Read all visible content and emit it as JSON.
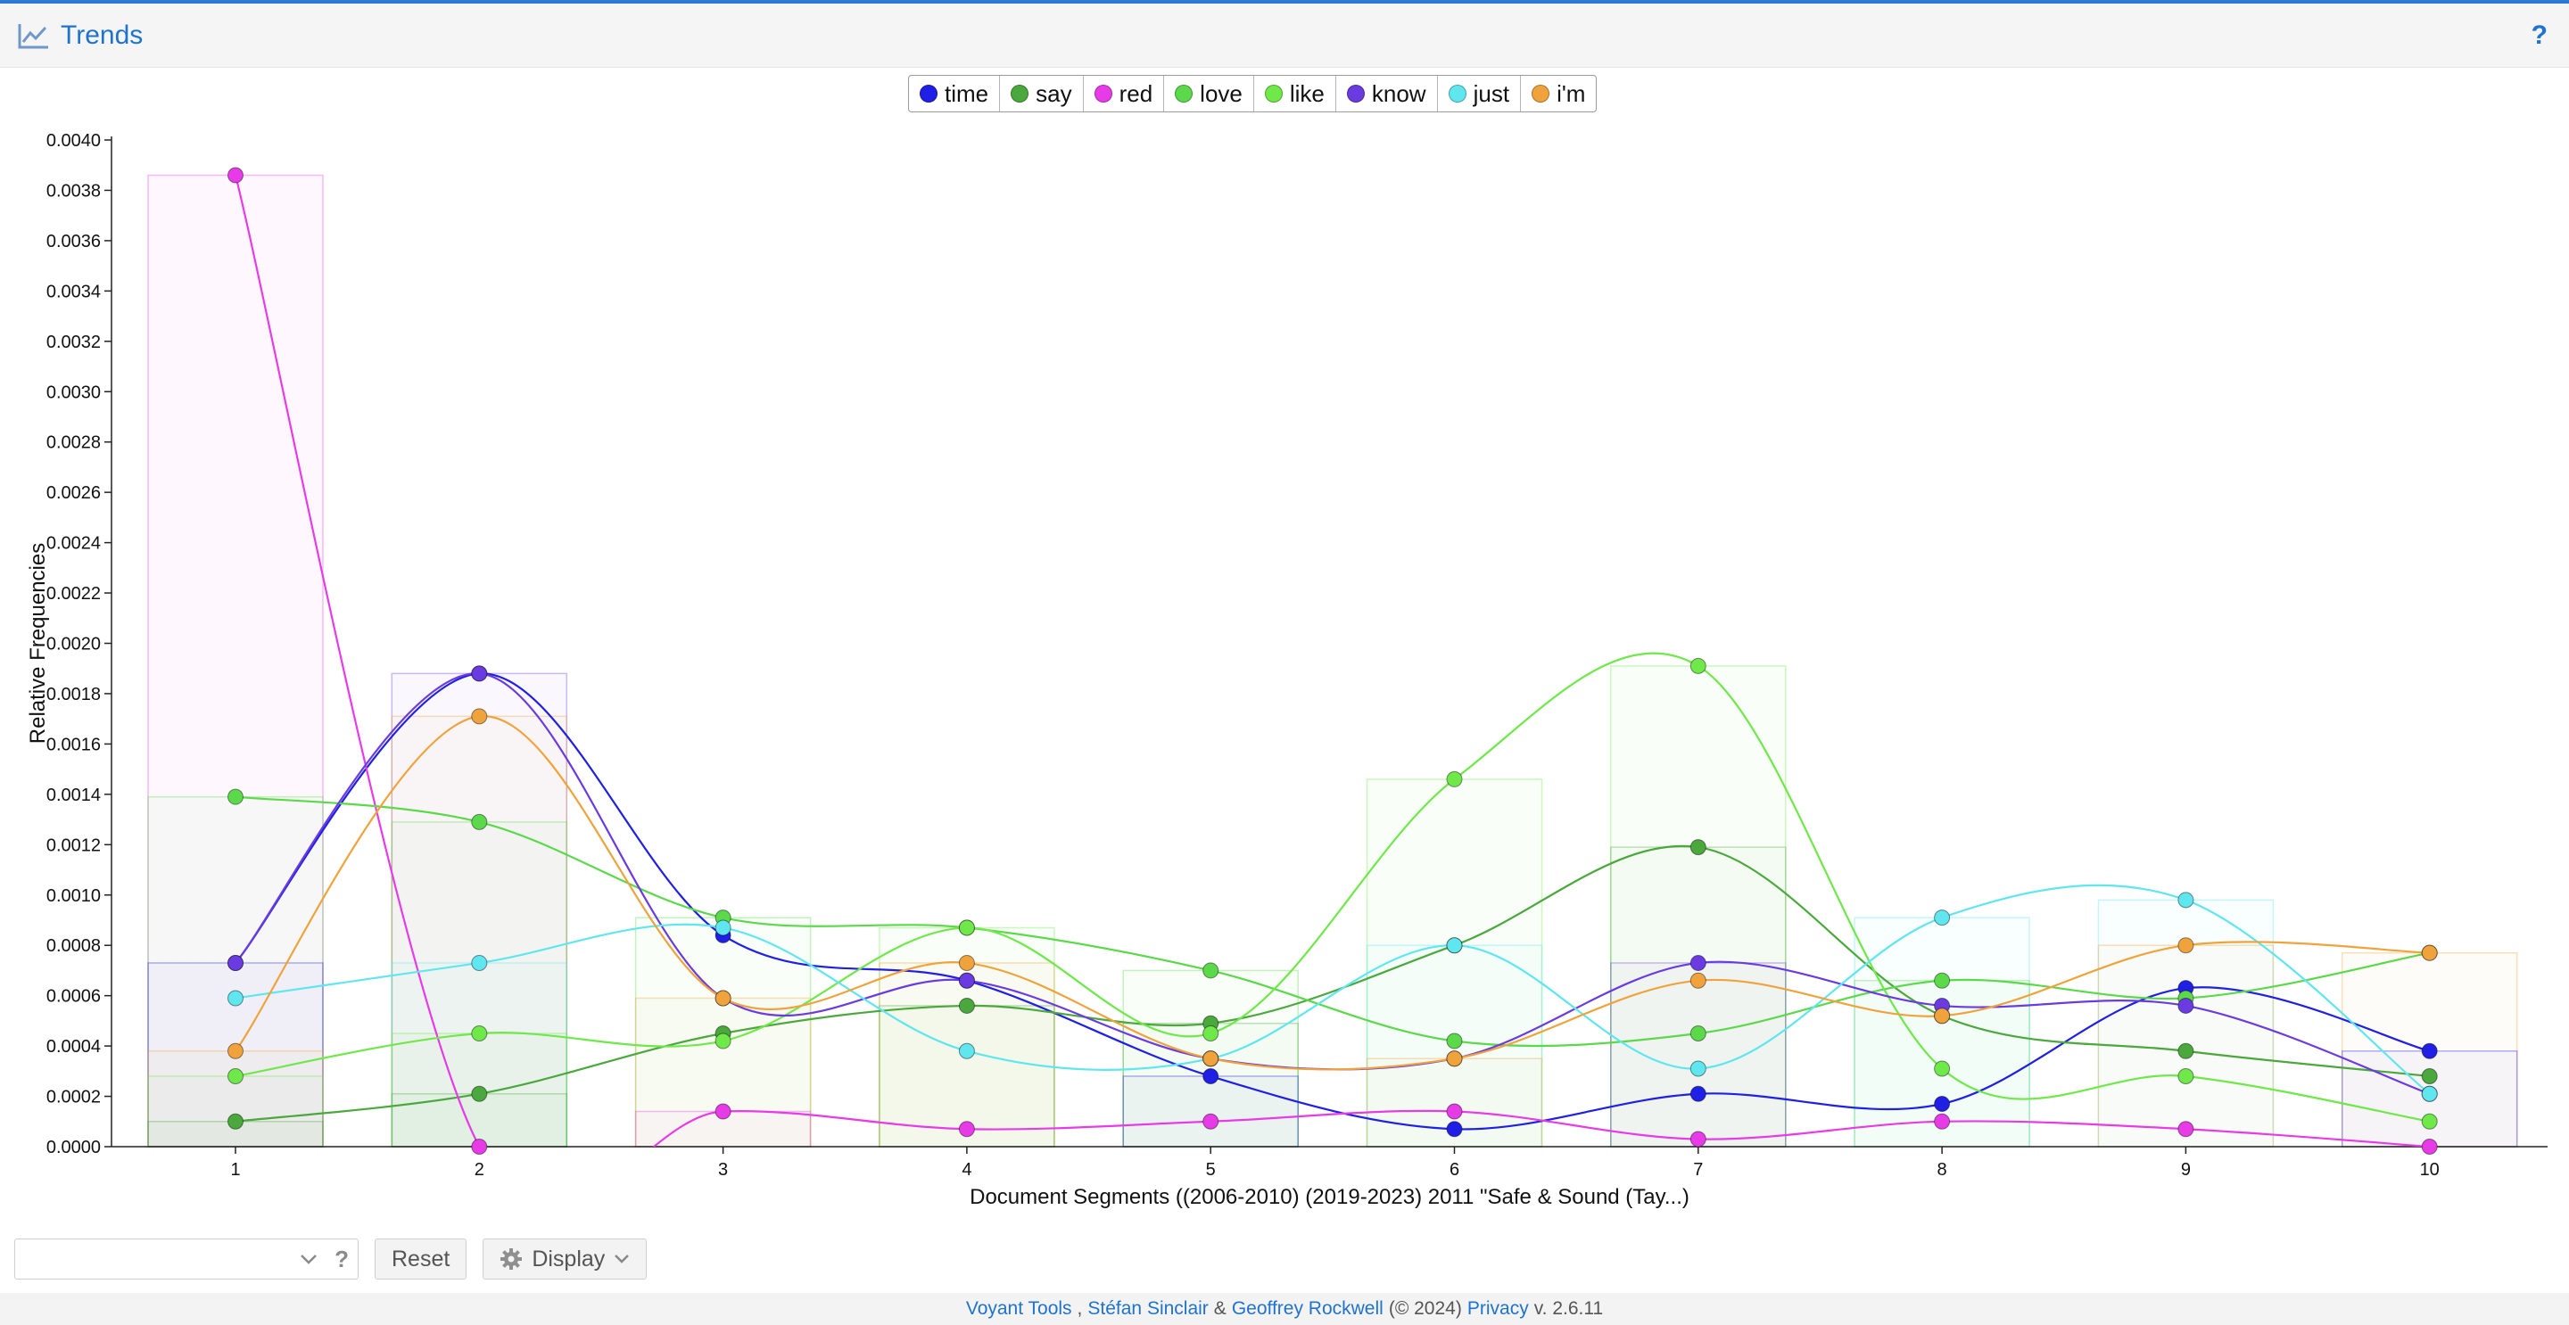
{
  "header": {
    "title": "Trends",
    "help_label": "?"
  },
  "legend": [
    {
      "label": "time",
      "color": "#1f1fe6"
    },
    {
      "label": "say",
      "color": "#4aa83c"
    },
    {
      "label": "red",
      "color": "#e83be8"
    },
    {
      "label": "love",
      "color": "#5bd94a"
    },
    {
      "label": "like",
      "color": "#6fe84a"
    },
    {
      "label": "know",
      "color": "#6a3be0"
    },
    {
      "label": "just",
      "color": "#5fe6ee"
    },
    {
      "label": "i'm",
      "color": "#f0a33c"
    }
  ],
  "chart_data": {
    "type": "line",
    "xlabel": "Document Segments ((2006-2010) (2019-2023) 2011 \"Safe & Sound (Tay...)",
    "ylabel": "Relative Frequencies",
    "ylim": [
      0,
      0.004
    ],
    "y_ticks": [
      "0.0000",
      "0.0002",
      "0.0004",
      "0.0006",
      "0.0008",
      "0.0010",
      "0.0012",
      "0.0014",
      "0.0016",
      "0.0018",
      "0.0020",
      "0.0022",
      "0.0024",
      "0.0026",
      "0.0028",
      "0.0030",
      "0.0032",
      "0.0034",
      "0.0036",
      "0.0038",
      "0.0040"
    ],
    "categories": [
      "1",
      "2",
      "3",
      "4",
      "5",
      "6",
      "7",
      "8",
      "9",
      "10"
    ],
    "series": [
      {
        "name": "time",
        "color": "#1f1fe6",
        "values": [
          0.00073,
          0.00188,
          0.00084,
          0.00066,
          0.00028,
          7e-05,
          0.00021,
          0.00017,
          0.00063,
          0.00038
        ]
      },
      {
        "name": "say",
        "color": "#4aa83c",
        "values": [
          0.0001,
          0.00021,
          0.00045,
          0.00056,
          0.00049,
          0.0008,
          0.00119,
          0.00052,
          0.00038,
          0.00028
        ]
      },
      {
        "name": "red",
        "color": "#e83be8",
        "values": [
          0.00386,
          0.0,
          0.00014,
          7e-05,
          0.0001,
          0.00014,
          3e-05,
          0.0001,
          7e-05,
          0.0
        ]
      },
      {
        "name": "love",
        "color": "#5bd94a",
        "values": [
          0.00139,
          0.00129,
          0.00091,
          0.00087,
          0.0007,
          0.00042,
          0.00045,
          0.00066,
          0.00059,
          0.00077
        ]
      },
      {
        "name": "like",
        "color": "#6fe84a",
        "values": [
          0.00028,
          0.00045,
          0.00042,
          0.00087,
          0.00045,
          0.00146,
          0.00191,
          0.00031,
          0.00028,
          0.0001
        ]
      },
      {
        "name": "know",
        "color": "#6a3be0",
        "values": [
          0.00073,
          0.00188,
          0.00059,
          0.00066,
          0.00035,
          0.00035,
          0.00073,
          0.00056,
          0.00056,
          0.00021
        ]
      },
      {
        "name": "just",
        "color": "#5fe6ee",
        "values": [
          0.00059,
          0.00073,
          0.00087,
          0.00038,
          0.00035,
          0.0008,
          0.00031,
          0.00091,
          0.00098,
          0.00021
        ]
      },
      {
        "name": "i'm",
        "color": "#f0a33c",
        "values": [
          0.00038,
          0.00171,
          0.00059,
          0.00073,
          0.00035,
          0.00035,
          0.00066,
          0.00052,
          0.0008,
          0.00077
        ]
      }
    ],
    "background_bars": [
      {
        "series": "red",
        "category": "1",
        "value": 0.00386
      },
      {
        "series": "love",
        "category": "1",
        "value": 0.00139
      },
      {
        "series": "time",
        "category": "1",
        "value": 0.00073
      },
      {
        "series": "i'm",
        "category": "1",
        "value": 0.00038
      },
      {
        "series": "like",
        "category": "1",
        "value": 0.00028
      },
      {
        "series": "say",
        "category": "1",
        "value": 0.0001
      },
      {
        "series": "know",
        "category": "2",
        "value": 0.00188
      },
      {
        "series": "i'm",
        "category": "2",
        "value": 0.00171
      },
      {
        "series": "love",
        "category": "2",
        "value": 0.00129
      },
      {
        "series": "just",
        "category": "2",
        "value": 0.00073
      },
      {
        "series": "like",
        "category": "2",
        "value": 0.00045
      },
      {
        "series": "say",
        "category": "2",
        "value": 0.00021
      },
      {
        "series": "love",
        "category": "3",
        "value": 0.00091
      },
      {
        "series": "i'm",
        "category": "3",
        "value": 0.00059
      },
      {
        "series": "red",
        "category": "3",
        "value": 0.00014
      },
      {
        "series": "like",
        "category": "4",
        "value": 0.00087
      },
      {
        "series": "i'm",
        "category": "4",
        "value": 0.00073
      },
      {
        "series": "say",
        "category": "4",
        "value": 0.00056
      },
      {
        "series": "love",
        "category": "5",
        "value": 0.0007
      },
      {
        "series": "say",
        "category": "5",
        "value": 0.00049
      },
      {
        "series": "time",
        "category": "5",
        "value": 0.00028
      },
      {
        "series": "like",
        "category": "6",
        "value": 0.00146
      },
      {
        "series": "just",
        "category": "6",
        "value": 0.0008
      },
      {
        "series": "i'm",
        "category": "6",
        "value": 0.00035
      },
      {
        "series": "like",
        "category": "7",
        "value": 0.00191
      },
      {
        "series": "say",
        "category": "7",
        "value": 0.00119
      },
      {
        "series": "know",
        "category": "7",
        "value": 0.00073
      },
      {
        "series": "just",
        "category": "8",
        "value": 0.00091
      },
      {
        "series": "love",
        "category": "8",
        "value": 0.00066
      },
      {
        "series": "just",
        "category": "9",
        "value": 0.00098
      },
      {
        "series": "i'm",
        "category": "9",
        "value": 0.0008
      },
      {
        "series": "i'm",
        "category": "10",
        "value": 0.00077
      },
      {
        "series": "time",
        "category": "10",
        "value": 0.00038
      }
    ],
    "grid": false
  },
  "toolbar": {
    "search_placeholder": "",
    "search_help": "?",
    "reset_label": "Reset",
    "display_label": "Display"
  },
  "footer": {
    "voyant": "Voyant Tools",
    "comma": ",",
    "sinclair": "Stéfan Sinclair",
    "amp": "&",
    "rockwell": "Geoffrey Rockwell",
    "copyright": "(© 2024)",
    "privacy": "Privacy",
    "version": "v. 2.6.11"
  }
}
